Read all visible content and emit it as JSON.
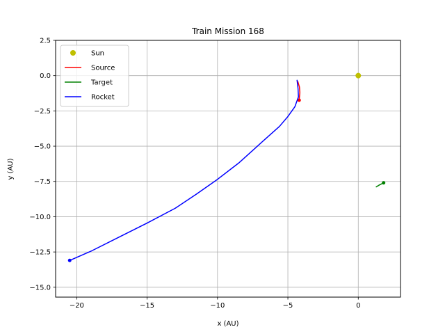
{
  "chart_data": {
    "type": "line",
    "title": "Train Mission 168",
    "xlabel": "x (AU)",
    "ylabel": "y (AU)",
    "xlim": [
      -21.5,
      3.0
    ],
    "ylim": [
      -15.7,
      2.5
    ],
    "xticks": [
      -20,
      -15,
      -10,
      -5,
      0
    ],
    "xtick_labels": [
      "−20",
      "−15",
      "−10",
      "−5",
      "0"
    ],
    "yticks": [
      2.5,
      0.0,
      -2.5,
      -5.0,
      -7.5,
      -10.0,
      -12.5,
      -15.0
    ],
    "ytick_labels": [
      "2.5",
      "0.0",
      "−2.5",
      "−5.0",
      "−7.5",
      "−10.0",
      "−12.5",
      "−15.0"
    ],
    "grid": true,
    "legend_position": "top-left",
    "series": [
      {
        "name": "Sun",
        "kind": "marker",
        "color": "#bfbf00",
        "points": [
          [
            0.0,
            0.0
          ]
        ]
      },
      {
        "name": "Source",
        "kind": "line",
        "color": "#ff0000",
        "points": [
          [
            -4.3,
            -0.4
          ],
          [
            -4.18,
            -0.8
          ],
          [
            -4.15,
            -1.2
          ],
          [
            -4.2,
            -1.74
          ]
        ],
        "end_marker": true
      },
      {
        "name": "Target",
        "kind": "line",
        "color": "#008000",
        "points": [
          [
            1.25,
            -7.9
          ],
          [
            1.5,
            -7.75
          ],
          [
            1.8,
            -7.6
          ]
        ],
        "end_marker": true
      },
      {
        "name": "Rocket",
        "kind": "line",
        "color": "#0000ff",
        "points": [
          [
            -4.35,
            -0.3
          ],
          [
            -4.28,
            -0.9
          ],
          [
            -4.25,
            -1.5
          ],
          [
            -4.5,
            -2.2
          ],
          [
            -5.0,
            -2.9
          ],
          [
            -5.6,
            -3.6
          ],
          [
            -6.5,
            -4.4
          ],
          [
            -7.5,
            -5.3
          ],
          [
            -8.5,
            -6.2
          ],
          [
            -10.0,
            -7.35
          ],
          [
            -11.5,
            -8.4
          ],
          [
            -13.0,
            -9.4
          ],
          [
            -15.0,
            -10.45
          ],
          [
            -17.0,
            -11.45
          ],
          [
            -19.0,
            -12.45
          ],
          [
            -20.5,
            -13.1
          ]
        ],
        "end_marker": true
      }
    ]
  }
}
